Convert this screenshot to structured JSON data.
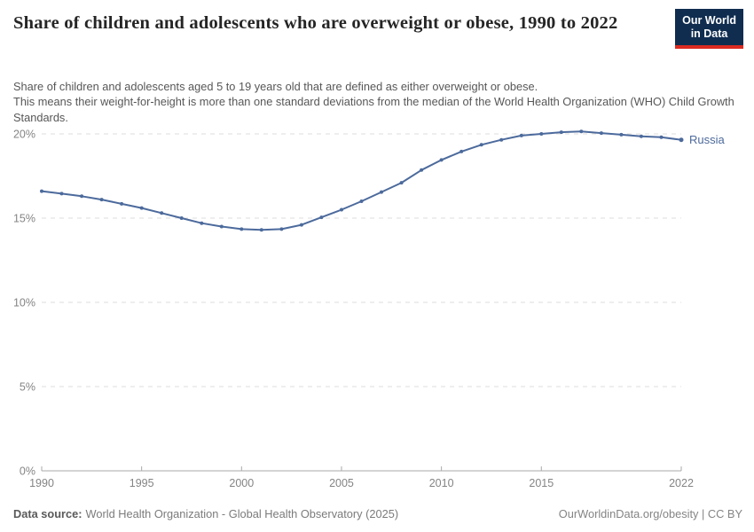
{
  "header": {
    "title": "Share of children and adolescents who are overweight or obese, 1990 to 2022",
    "subtitle_line1": "Share of children and adolescents aged 5 to 19 years old that are defined as either overweight or obese.",
    "subtitle_rest": "This means their weight-for-height is more than one standard deviations from the median of the World Health Organization (WHO) Child Growth Standards.",
    "logo": {
      "line1": "Our World",
      "line2": "in Data",
      "bg_color": "#102d50",
      "bar_color": "#dc2a20"
    }
  },
  "chart_data": {
    "type": "line",
    "title": "Share of children and adolescents who are overweight or obese, 1990 to 2022",
    "xlabel": "",
    "ylabel": "",
    "x": [
      1990,
      1991,
      1992,
      1993,
      1994,
      1995,
      1996,
      1997,
      1998,
      1999,
      2000,
      2001,
      2002,
      2003,
      2004,
      2005,
      2006,
      2007,
      2008,
      2009,
      2010,
      2011,
      2012,
      2013,
      2014,
      2015,
      2016,
      2017,
      2018,
      2019,
      2020,
      2021,
      2022
    ],
    "series": [
      {
        "name": "Russia",
        "color": "#4c6a9c",
        "values": [
          16.6,
          16.45,
          16.3,
          16.1,
          15.85,
          15.6,
          15.3,
          15.0,
          14.7,
          14.5,
          14.35,
          14.3,
          14.35,
          14.6,
          15.05,
          15.5,
          16.0,
          16.55,
          17.1,
          17.85,
          18.45,
          18.95,
          19.35,
          19.65,
          19.9,
          20.0,
          20.1,
          20.15,
          20.05,
          19.95,
          19.85,
          19.8,
          19.65
        ]
      }
    ],
    "xlim": [
      1990,
      2022
    ],
    "ylim": [
      0,
      20
    ],
    "yticks": [
      0,
      5,
      10,
      15,
      20
    ],
    "ytick_suffix": "%",
    "xticks": [
      1990,
      1995,
      2000,
      2005,
      2010,
      2015,
      2022
    ],
    "grid": "horizontal-dashed",
    "grid_color": "#dcdcdc",
    "axis_color": "#a9a9a9",
    "legend_position": "end-of-line"
  },
  "footer": {
    "data_source_label": "Data source:",
    "data_source_value": "World Health Organization - Global Health Observatory (2025)",
    "url": "OurWorldinData.org/obesity",
    "separator": " | ",
    "license": "CC BY"
  }
}
